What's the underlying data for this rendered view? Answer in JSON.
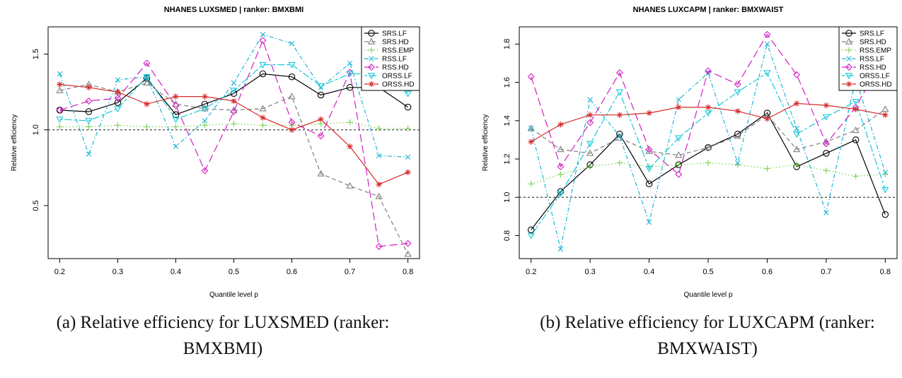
{
  "captions": {
    "a": "(a) Relative efficiency for LUXSMED (ranker:\nBMXBMI)",
    "b": "(b) Relative efficiency for LUXCAPM (ranker:\nBMXWAIST)"
  },
  "chart_data": [
    {
      "type": "line",
      "title": "NHANES LUXSMED | ranker: BMXBMI",
      "xlabel": "Quantile level p",
      "ylabel": "Relative efficiency",
      "x": [
        0.2,
        0.25,
        0.3,
        0.35,
        0.4,
        0.45,
        0.5,
        0.55,
        0.6,
        0.65,
        0.7,
        0.75,
        0.8
      ],
      "xlim": [
        0.18,
        0.82
      ],
      "ylim": [
        0.15,
        1.68
      ],
      "xticks": [
        "0.2",
        "0.3",
        "0.4",
        "0.5",
        "0.6",
        "0.7",
        "0.8"
      ],
      "yticks": [
        "0.5",
        "1.0",
        "1.5"
      ],
      "reference_line": 1.0,
      "legend_position": "top-right",
      "series": [
        {
          "name": "SRS.LF",
          "color": "#000000",
          "marker": "circle",
          "dash": "solid",
          "values": [
            1.13,
            1.12,
            1.18,
            1.34,
            1.1,
            1.17,
            1.24,
            1.37,
            1.35,
            1.23,
            1.28,
            1.28,
            1.15
          ]
        },
        {
          "name": "SRS.HD",
          "color": "#808080",
          "marker": "triangle",
          "dash": "dashed",
          "values": [
            1.26,
            1.3,
            1.25,
            1.31,
            1.17,
            1.14,
            1.13,
            1.14,
            1.22,
            0.71,
            0.63,
            0.56,
            0.18
          ]
        },
        {
          "name": "RSS.EMP",
          "color": "#7ad151",
          "marker": "plus",
          "dash": "dotted",
          "values": [
            1.02,
            1.02,
            1.03,
            1.02,
            1.02,
            1.03,
            1.04,
            1.03,
            1.03,
            1.04,
            1.05,
            1.01,
            1.01
          ]
        },
        {
          "name": "RSS.LF",
          "color": "#1fb6d5",
          "marker": "cross",
          "dash": "dashdot",
          "values": [
            1.37,
            0.84,
            1.33,
            1.35,
            0.89,
            1.06,
            1.31,
            1.63,
            1.57,
            1.28,
            1.44,
            0.83,
            0.82
          ]
        },
        {
          "name": "RSS.HD",
          "color": "#d41fc4",
          "marker": "diamond",
          "dash": "longdash",
          "values": [
            1.13,
            1.19,
            1.21,
            1.44,
            1.16,
            0.73,
            1.12,
            1.59,
            1.05,
            0.96,
            1.38,
            0.23,
            0.25
          ]
        },
        {
          "name": "ORSS.LF",
          "color": "#19c9d9",
          "marker": "invtriangle",
          "dash": "twodash",
          "values": [
            1.07,
            1.06,
            1.14,
            1.35,
            1.07,
            1.14,
            1.26,
            1.43,
            1.43,
            1.29,
            1.37,
            1.37,
            1.24
          ]
        },
        {
          "name": "ORSS.HD",
          "color": "#d62b2b",
          "marker": "asterisk",
          "dash": "solid",
          "values": [
            1.3,
            1.28,
            1.25,
            1.17,
            1.22,
            1.22,
            1.19,
            1.08,
            1.0,
            1.07,
            0.89,
            0.64,
            0.72
          ]
        }
      ]
    },
    {
      "type": "line",
      "title": "NHANES LUXCAPM | ranker: BMXWAIST",
      "xlabel": "Quantile level p",
      "ylabel": "Relative efficiency",
      "x": [
        0.2,
        0.25,
        0.3,
        0.35,
        0.4,
        0.45,
        0.5,
        0.55,
        0.6,
        0.65,
        0.7,
        0.75,
        0.8
      ],
      "xlim": [
        0.18,
        0.82
      ],
      "ylim": [
        0.68,
        1.89
      ],
      "xticks": [
        "0.2",
        "0.3",
        "0.4",
        "0.5",
        "0.6",
        "0.7",
        "0.8"
      ],
      "yticks": [
        "0.8",
        "1.0",
        "1.2",
        "1.4",
        "1.6",
        "1.8"
      ],
      "reference_line": 1.0,
      "legend_position": "top-right",
      "series": [
        {
          "name": "SRS.LF",
          "color": "#000000",
          "marker": "circle",
          "dash": "solid",
          "values": [
            0.83,
            1.03,
            1.17,
            1.33,
            1.07,
            1.17,
            1.26,
            1.33,
            1.44,
            1.16,
            1.23,
            1.3,
            0.91
          ]
        },
        {
          "name": "SRS.HD",
          "color": "#808080",
          "marker": "triangle",
          "dash": "dashed",
          "values": [
            1.36,
            1.25,
            1.23,
            1.31,
            1.24,
            1.22,
            1.26,
            1.32,
            1.43,
            1.25,
            1.29,
            1.35,
            1.46
          ]
        },
        {
          "name": "RSS.EMP",
          "color": "#7ad151",
          "marker": "plus",
          "dash": "dotted",
          "values": [
            1.07,
            1.12,
            1.16,
            1.18,
            1.16,
            1.17,
            1.18,
            1.17,
            1.15,
            1.17,
            1.14,
            1.11,
            1.12
          ]
        },
        {
          "name": "RSS.LF",
          "color": "#1fb6d5",
          "marker": "cross",
          "dash": "dashdot",
          "values": [
            1.36,
            0.73,
            1.51,
            1.32,
            0.87,
            1.51,
            1.65,
            1.18,
            1.8,
            1.36,
            0.92,
            1.62,
            1.13
          ]
        },
        {
          "name": "RSS.HD",
          "color": "#d41fc4",
          "marker": "diamond",
          "dash": "longdash",
          "values": [
            1.63,
            1.16,
            1.39,
            1.65,
            1.25,
            1.12,
            1.66,
            1.59,
            1.85,
            1.64,
            1.28,
            1.47,
            1.75
          ]
        },
        {
          "name": "ORSS.LF",
          "color": "#19c9d9",
          "marker": "invtriangle",
          "dash": "twodash",
          "values": [
            0.8,
            1.02,
            1.28,
            1.55,
            1.15,
            1.31,
            1.44,
            1.55,
            1.65,
            1.33,
            1.42,
            1.5,
            1.04
          ]
        },
        {
          "name": "ORSS.HD",
          "color": "#d62b2b",
          "marker": "asterisk",
          "dash": "solid",
          "values": [
            1.29,
            1.38,
            1.43,
            1.43,
            1.44,
            1.47,
            1.47,
            1.45,
            1.41,
            1.49,
            1.48,
            1.46,
            1.43
          ]
        }
      ]
    }
  ]
}
